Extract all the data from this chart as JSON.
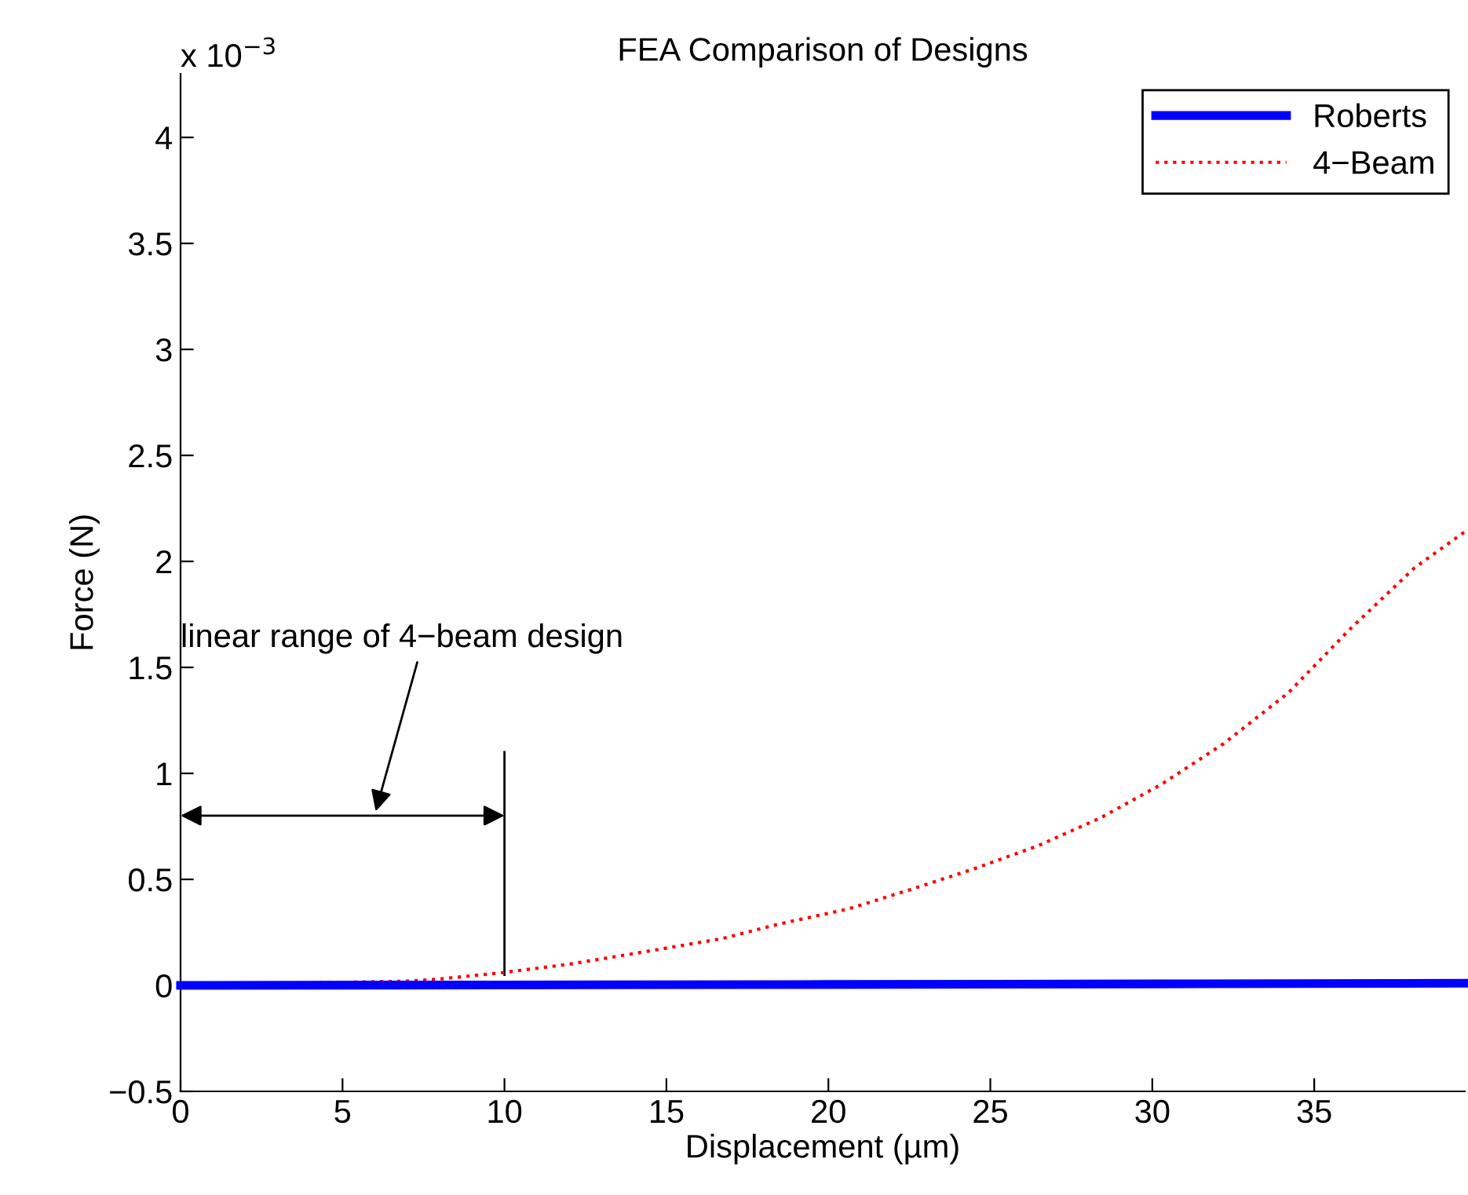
{
  "chart_data": {
    "type": "line",
    "title": "FEA Comparison of Designs",
    "xlabel": "Displacement (µm)",
    "ylabel": "Force (N)",
    "xlim": [
      0,
      39.65
    ],
    "xticks": [
      0,
      5,
      10,
      15,
      20,
      25,
      30,
      35
    ],
    "ylim": [
      -0.5,
      4.3
    ],
    "yticks": [
      {
        "value": -0.5,
        "label": "−0.5"
      },
      0,
      0.5,
      1,
      1.5,
      2,
      2.5,
      3,
      3.5,
      4
    ],
    "grid": false,
    "legend": "top right",
    "series": [
      {
        "name": "Roberts",
        "color": "#0000ff",
        "line_style": "solid",
        "x": [
          0,
          10,
          20,
          30,
          39.65
        ],
        "values": [
          0,
          0.002,
          0.004,
          0.007,
          0.01
        ]
      },
      {
        "name": "4−Beam",
        "color": "#ff0000",
        "line_style": "dotted",
        "x": [
          0,
          7,
          8,
          9.94,
          12,
          14,
          16.7,
          18.5,
          20.6,
          22.5,
          24.5,
          26.5,
          28.4,
          30.3,
          32.2,
          34.2,
          36.1,
          38.1,
          39.65
        ],
        "values": [
          0,
          0.02,
          0.03,
          0.06,
          0.1,
          0.15,
          0.22,
          0.29,
          0.36,
          0.45,
          0.55,
          0.66,
          0.79,
          0.95,
          1.14,
          1.38,
          1.68,
          1.97,
          2.14
        ]
      }
    ],
    "ref_lines": [
      {
        "axis": "x",
        "value": 10
      }
    ],
    "annotations": [
      "x 10$^{−3}$",
      "linear range of 4−beam design"
    ]
  }
}
